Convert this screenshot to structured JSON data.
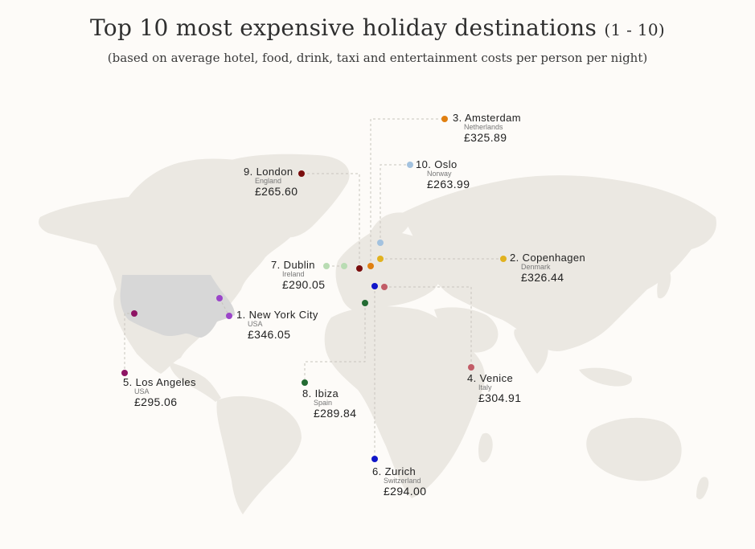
{
  "header": {
    "title": "Top 10 most expensive holiday destinations",
    "title_range": "(1 - 10)",
    "subtitle": "(based on average hotel, food, drink, taxi and entertainment costs per person per night)"
  },
  "colors": {
    "background": "#fdfbf8",
    "land": "#ebe8e2",
    "usa_highlight": "#d7d7d7",
    "leader_line": "#c8c4bd"
  },
  "destinations": [
    {
      "rank": "1.",
      "city": "New York City",
      "country": "USA",
      "price": "£346.05",
      "color": "#9b45c9"
    },
    {
      "rank": "2.",
      "city": "Copenhagen",
      "country": "Denmark",
      "price": "£326.44",
      "color": "#e1b21f"
    },
    {
      "rank": "3.",
      "city": "Amsterdam",
      "country": "Netherlands",
      "price": "£325.89",
      "color": "#e07f10"
    },
    {
      "rank": "4.",
      "city": "Venice",
      "country": "Italy",
      "price": "£304.91",
      "color": "#c25c67"
    },
    {
      "rank": "5.",
      "city": "Los Angeles",
      "country": "USA",
      "price": "£295.06",
      "color": "#8e1464"
    },
    {
      "rank": "6.",
      "city": "Zurich",
      "country": "Switzerland",
      "price": "£294.00",
      "color": "#1016c9"
    },
    {
      "rank": "7.",
      "city": "Dublin",
      "country": "Ireland",
      "price": "£290.05",
      "color": "#b9dcb3"
    },
    {
      "rank": "8.",
      "city": "Ibiza",
      "country": "Spain",
      "price": "£289.84",
      "color": "#236b33"
    },
    {
      "rank": "9.",
      "city": "London",
      "country": "England",
      "price": "£265.60",
      "color": "#7a0d0d"
    },
    {
      "rank": "10.",
      "city": "Oslo",
      "country": "Norway",
      "price": "£263.99",
      "color": "#a3c2df"
    }
  ]
}
